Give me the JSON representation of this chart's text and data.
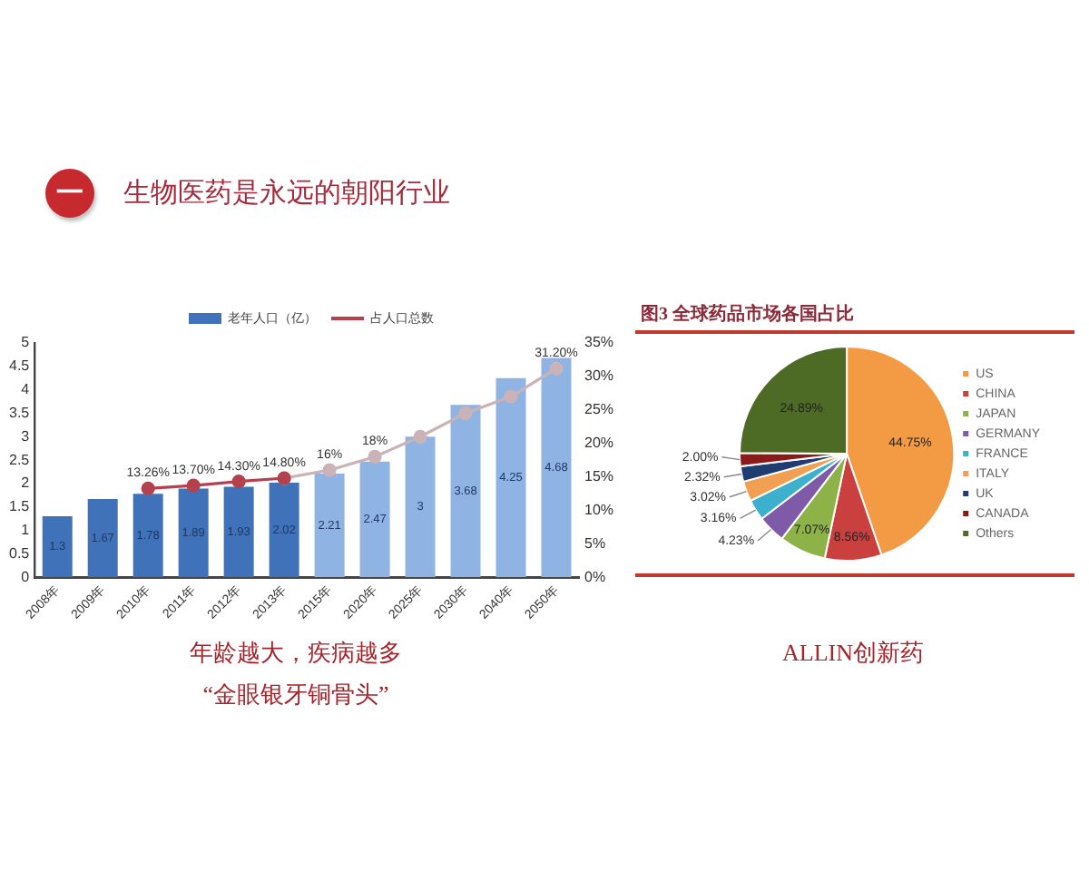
{
  "chart_data": [
    {
      "type": "other",
      "title": "生物医药是永远的朝阳行业",
      "annotations": [
        "一"
      ]
    },
    {
      "type": "bar",
      "categories": [
        "2008年",
        "2009年",
        "2010年",
        "2011年",
        "2012年",
        "2013年",
        "2015年",
        "2020年",
        "2025年",
        "2030年",
        "2040年",
        "2050年"
      ],
      "series": [
        {
          "name": "老年人口（亿）",
          "type": "bar",
          "color": "#3f72b8",
          "colors": [
            "#3f72b8",
            "#3f72b8",
            "#3f72b8",
            "#3f72b8",
            "#3f72b8",
            "#3f72b8",
            "#8fb4e3",
            "#8fb4e3",
            "#8fb4e3",
            "#8fb4e3",
            "#8fb4e3",
            "#8fb4e3"
          ],
          "values": [
            1.3,
            1.67,
            1.78,
            1.89,
            1.93,
            2.02,
            2.21,
            2.47,
            3,
            3.68,
            4.25,
            4.68
          ],
          "value_labels": [
            "1.3",
            "1.67",
            "1.78",
            "1.89",
            "1.93",
            "2.02",
            "2.21",
            "2.47",
            "3",
            "3.68",
            "4.25",
            "4.68"
          ]
        },
        {
          "name": "占人口总数",
          "type": "line",
          "axis": "y2",
          "color": "#b5414e",
          "values": [
            null,
            null,
            13.26,
            13.7,
            14.3,
            14.8,
            null,
            null,
            null,
            null,
            null,
            null
          ],
          "value_labels": [
            null,
            null,
            "13.26%",
            "13.70%",
            "14.30%",
            "14.80%",
            null,
            null,
            null,
            null,
            null,
            null
          ]
        },
        {
          "type": "line",
          "axis": "y2",
          "color": "#c9b3b7",
          "values": [
            null,
            null,
            null,
            null,
            null,
            14.8,
            16,
            18,
            21,
            24.5,
            27,
            31.2
          ],
          "value_labels": [
            null,
            null,
            null,
            null,
            null,
            null,
            "16%",
            "18%",
            null,
            null,
            null,
            "31.20%"
          ]
        }
      ],
      "ylim": [
        0,
        5
      ],
      "yticks": [
        0,
        0.5,
        1,
        1.5,
        2,
        2.5,
        3,
        3.5,
        4,
        4.5,
        5
      ],
      "y2lim": [
        0,
        35
      ],
      "y2ticks": [
        {
          "value": 0,
          "label": "0%"
        },
        {
          "value": 5,
          "label": "5%"
        },
        {
          "value": 10,
          "label": "10%"
        },
        {
          "value": 15,
          "label": "15%"
        },
        {
          "value": 20,
          "label": "20%"
        },
        {
          "value": 25,
          "label": "25%"
        },
        {
          "value": 30,
          "label": "30%"
        },
        {
          "value": 35,
          "label": "35%"
        }
      ],
      "legend": "top",
      "marker": "circle",
      "annotations": [
        "年龄越大，疾病越多",
        "“金眼银牙铜骨头”"
      ]
    },
    {
      "type": "pie",
      "title": "图3 全球药品市场各国占比",
      "categories": [
        "US",
        "CHINA",
        "JAPAN",
        "GERMANY",
        "FRANCE",
        "ITALY",
        "UK",
        "CANADA",
        "Others"
      ],
      "values": [
        44.75,
        8.56,
        7.07,
        4.23,
        3.16,
        3.02,
        2.32,
        2.0,
        24.89
      ],
      "colors": [
        "#f39a45",
        "#c9403f",
        "#8db348",
        "#7e5aa8",
        "#3cb0cc",
        "#f0a050",
        "#1f3d70",
        "#8b1a1a",
        "#4e6b25"
      ],
      "value_labels": [
        "44.75%",
        "8.56%",
        "7.07%",
        "4.23%",
        "3.16%",
        "3.02%",
        "2.32%",
        "2.00%",
        "24.89%"
      ],
      "legend": "right",
      "annotations": [
        "ALLIN创新药"
      ]
    }
  ]
}
